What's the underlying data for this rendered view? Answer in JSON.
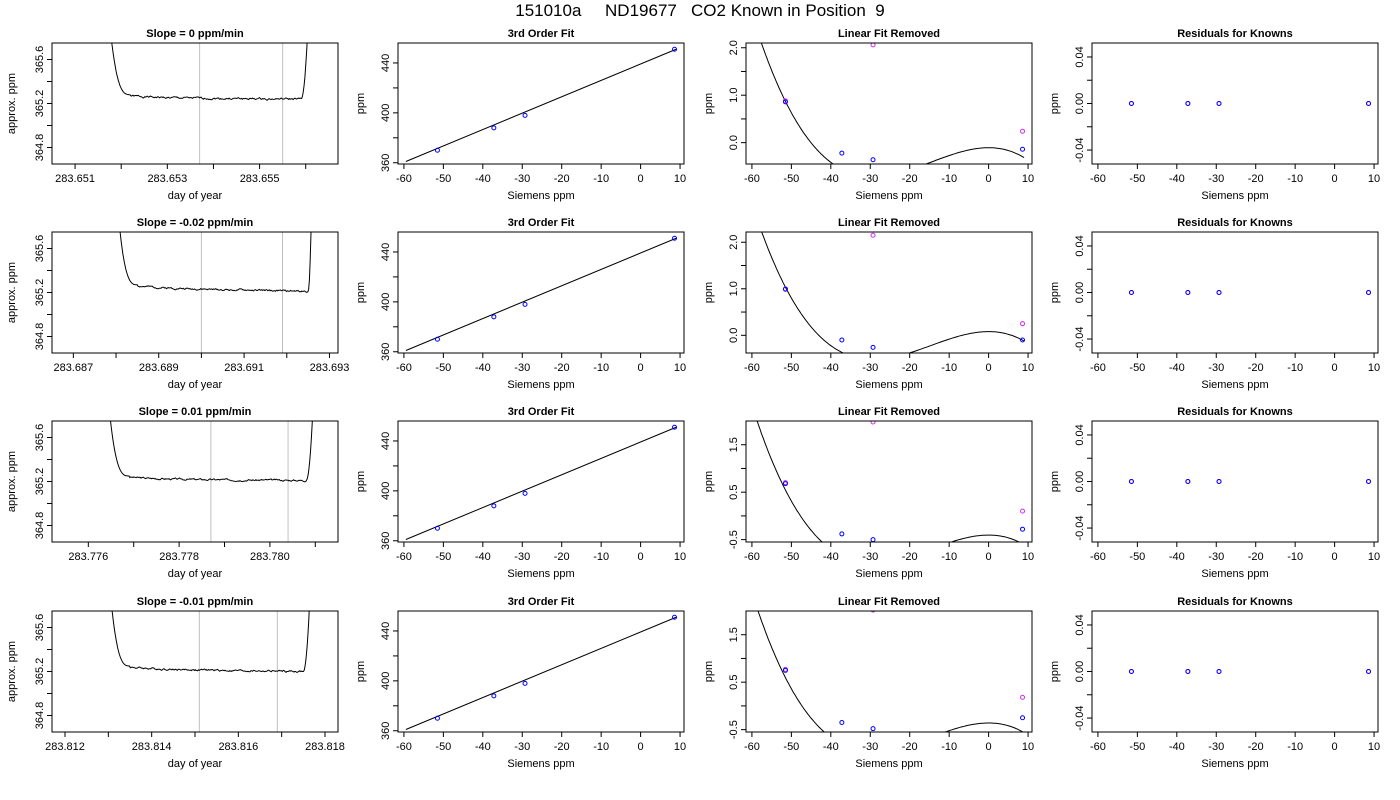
{
  "page_title": "151010a     ND19677   CO2 Known in Position  9",
  "colors": {
    "curve": "#000000",
    "measured": "#0000ff",
    "reference": "#d22cf0",
    "window_lines": "#c0c0c0",
    "background": "#ffffff"
  },
  "chart_data": [
    {
      "type": "line",
      "title": "Slope =  0  ppm/min",
      "xlabel": "day of year",
      "ylabel": "approx. ppm",
      "xlim": [
        283.6505,
        283.6567
      ],
      "ylim": [
        364.65,
        365.75
      ],
      "xticks": [
        283.651,
        283.652,
        283.653,
        283.654,
        283.655,
        283.656
      ],
      "xtick_labels": [
        "283.651",
        "",
        "283.653",
        "",
        "283.655",
        ""
      ],
      "yticks": [
        364.8,
        365.0,
        365.2,
        365.4,
        365.6
      ],
      "ytick_labels": [
        "364.8",
        "",
        "365.2",
        "",
        "365.6"
      ],
      "trace": {
        "start": 283.6517,
        "end": 283.6561,
        "plateau_start": 283.6522,
        "plateau_end": 283.6559,
        "level": 365.25,
        "level_end": 365.24,
        "noise": 0.013,
        "trend_seed": 1
      },
      "window": [
        283.6537,
        283.6555
      ]
    },
    {
      "type": "scatter",
      "title": "3rd Order Fit",
      "xlabel": "Siemens ppm",
      "ylabel": "ppm",
      "xlim": [
        -61.5,
        11
      ],
      "ylim": [
        359,
        456
      ],
      "xticks": [
        -60,
        -50,
        -40,
        -30,
        -20,
        -10,
        0,
        10
      ],
      "xtick_labels": [
        "-60",
        "-50",
        "-40",
        "-30",
        "-20",
        "-10",
        "0",
        "10"
      ],
      "yticks": [
        360,
        380,
        400,
        420,
        440
      ],
      "ytick_labels": [
        "360",
        "",
        "400",
        "",
        "440"
      ],
      "points": [
        {
          "x": -51.5,
          "y": 370
        },
        {
          "x": -37.2,
          "y": 388
        },
        {
          "x": -29.3,
          "y": 398
        },
        {
          "x": 8.6,
          "y": 451
        }
      ],
      "curve": {
        "type": "linear",
        "x0": -59.5,
        "x1": 9,
        "y0": 361,
        "y1": 451
      }
    },
    {
      "type": "scatter",
      "title": "Linear Fit Removed",
      "xlabel": "Siemens ppm",
      "ylabel": "ppm",
      "xlim": [
        -61.5,
        11
      ],
      "ylim": [
        -0.45,
        2.1
      ],
      "xticks": [
        -60,
        -50,
        -40,
        -30,
        -20,
        -10,
        0,
        10
      ],
      "xtick_labels": [
        "-60",
        "-50",
        "-40",
        "-30",
        "-20",
        "-10",
        "0",
        "10"
      ],
      "yticks": [
        0,
        0.5,
        1,
        1.5,
        2
      ],
      "ytick_labels": [
        "0.0",
        "",
        "1.0",
        "",
        "2.0"
      ],
      "points": [
        {
          "x": -51.5,
          "y": 0.86
        },
        {
          "x": -37.2,
          "y": -0.22
        },
        {
          "x": -29.3,
          "y": -0.36
        },
        {
          "x": 8.6,
          "y": -0.14
        }
      ],
      "reference_points": [
        {
          "x": -51.5,
          "y": 0.88
        },
        {
          "x": -29.3,
          "y": 2.06
        },
        {
          "x": 8.6,
          "y": 0.24
        }
      ],
      "curve": {
        "type": "cubic",
        "x0": -60,
        "x1": 9,
        "xr": -29.3,
        "xz": 0,
        "k": 4.876e-05
      }
    },
    {
      "type": "scatter",
      "title": "Residuals for Knowns",
      "xlabel": "Siemens ppm",
      "ylabel": "ppm",
      "xlim": [
        -61.5,
        11
      ],
      "ylim": [
        -0.052,
        0.052
      ],
      "xticks": [
        -60,
        -50,
        -40,
        -30,
        -20,
        -10,
        0,
        10
      ],
      "xtick_labels": [
        "-60",
        "-50",
        "-40",
        "-30",
        "-20",
        "-10",
        "0",
        "10"
      ],
      "yticks": [
        -0.04,
        -0.02,
        0,
        0.02,
        0.04
      ],
      "ytick_labels": [
        "-0.04",
        "",
        "0.00",
        "",
        "0.04"
      ],
      "points": [
        {
          "x": -51.5,
          "y": 0
        },
        {
          "x": -37.2,
          "y": 0
        },
        {
          "x": -29.3,
          "y": 0
        },
        {
          "x": 8.6,
          "y": 0
        }
      ],
      "reference_points": [
        {
          "x": -51.5,
          "y": 0
        },
        {
          "x": -37.2,
          "y": 0
        },
        {
          "x": -29.3,
          "y": 0
        },
        {
          "x": 8.6,
          "y": 0
        }
      ]
    },
    {
      "type": "line",
      "title": "Slope =  -0.02  ppm/min",
      "xlabel": "day of year",
      "ylabel": "approx. ppm",
      "xlim": [
        283.6865,
        283.6932
      ],
      "ylim": [
        364.65,
        365.75
      ],
      "xticks": [
        283.687,
        283.688,
        283.689,
        283.69,
        283.691,
        283.692,
        283.693
      ],
      "xtick_labels": [
        "283.687",
        "",
        "283.689",
        "",
        "283.691",
        "",
        "283.693"
      ],
      "yticks": [
        364.8,
        365.0,
        365.2,
        365.4,
        365.6
      ],
      "ytick_labels": [
        "364.8",
        "",
        "365.2",
        "",
        "365.6"
      ],
      "trace": {
        "start": 283.688,
        "end": 283.6926,
        "plateau_start": 283.6885,
        "plateau_end": 283.6925,
        "level": 365.24,
        "level_end": 365.21,
        "noise": 0.012,
        "trend_seed": 2
      },
      "window": [
        283.69,
        283.6919
      ]
    },
    {
      "type": "scatter",
      "title": "3rd Order Fit",
      "xlabel": "Siemens ppm",
      "ylabel": "ppm",
      "xlim": [
        -61.5,
        11
      ],
      "ylim": [
        359,
        456
      ],
      "xticks": [
        -60,
        -50,
        -40,
        -30,
        -20,
        -10,
        0,
        10
      ],
      "xtick_labels": [
        "-60",
        "-50",
        "-40",
        "-30",
        "-20",
        "-10",
        "0",
        "10"
      ],
      "yticks": [
        360,
        380,
        400,
        420,
        440
      ],
      "ytick_labels": [
        "360",
        "",
        "400",
        "",
        "440"
      ],
      "points": [
        {
          "x": -51.5,
          "y": 370
        },
        {
          "x": -37.2,
          "y": 388
        },
        {
          "x": -29.3,
          "y": 398
        },
        {
          "x": 8.6,
          "y": 451
        }
      ],
      "curve": {
        "type": "linear",
        "x0": -59.5,
        "x1": 9,
        "y0": 361,
        "y1": 451
      }
    },
    {
      "type": "scatter",
      "title": "Linear Fit Removed",
      "xlabel": "Siemens ppm",
      "ylabel": "ppm",
      "xlim": [
        -61.5,
        11
      ],
      "ylim": [
        -0.38,
        2.22
      ],
      "xticks": [
        -60,
        -50,
        -40,
        -30,
        -20,
        -10,
        0,
        10
      ],
      "xtick_labels": [
        "-60",
        "-50",
        "-40",
        "-30",
        "-20",
        "-10",
        "0",
        "10"
      ],
      "yticks": [
        0,
        0.5,
        1,
        1.5,
        2
      ],
      "ytick_labels": [
        "0.0",
        "",
        "1.0",
        "",
        "2.0"
      ],
      "points": [
        {
          "x": -51.5,
          "y": 0.99
        },
        {
          "x": -37.2,
          "y": -0.1
        },
        {
          "x": -29.3,
          "y": -0.26
        },
        {
          "x": 8.6,
          "y": -0.1
        }
      ],
      "reference_points": [
        {
          "x": -51.5,
          "y": 1.0
        },
        {
          "x": -29.3,
          "y": 2.15
        },
        {
          "x": 8.6,
          "y": 0.25
        }
      ],
      "curve": {
        "type": "cubic",
        "x0": -60,
        "x1": 9,
        "xr": -29.3,
        "xz": 0,
        "k": 4.77e-05
      }
    },
    {
      "type": "scatter",
      "title": "Residuals for Knowns",
      "xlabel": "Siemens ppm",
      "ylabel": "ppm",
      "xlim": [
        -61.5,
        11
      ],
      "ylim": [
        -0.052,
        0.052
      ],
      "xticks": [
        -60,
        -50,
        -40,
        -30,
        -20,
        -10,
        0,
        10
      ],
      "xtick_labels": [
        "-60",
        "-50",
        "-40",
        "-30",
        "-20",
        "-10",
        "0",
        "10"
      ],
      "yticks": [
        -0.04,
        -0.02,
        0,
        0.02,
        0.04
      ],
      "ytick_labels": [
        "-0.04",
        "",
        "0.00",
        "",
        "0.04"
      ],
      "points": [
        {
          "x": -51.5,
          "y": 0
        },
        {
          "x": -37.2,
          "y": 0
        },
        {
          "x": -29.3,
          "y": 0
        },
        {
          "x": 8.6,
          "y": 0
        }
      ],
      "reference_points": [
        {
          "x": -51.5,
          "y": 0
        },
        {
          "x": -37.2,
          "y": 0
        },
        {
          "x": -29.3,
          "y": 0
        },
        {
          "x": 8.6,
          "y": 0
        }
      ]
    },
    {
      "type": "line",
      "title": "Slope =  0.01  ppm/min",
      "xlabel": "day of year",
      "ylabel": "approx. ppm",
      "xlim": [
        283.7752,
        283.7815
      ],
      "ylim": [
        364.65,
        365.75
      ],
      "xticks": [
        283.776,
        283.777,
        283.778,
        283.779,
        283.78,
        283.781
      ],
      "xtick_labels": [
        "283.776",
        "",
        "283.778",
        "",
        "283.780",
        ""
      ],
      "yticks": [
        364.8,
        365.0,
        365.2,
        365.4,
        365.6
      ],
      "ytick_labels": [
        "364.8",
        "",
        "365.2",
        "",
        "365.6"
      ],
      "trace": {
        "start": 283.7764,
        "end": 283.781,
        "plateau_start": 283.7769,
        "plateau_end": 283.7808,
        "level": 365.22,
        "level_end": 365.21,
        "noise": 0.012,
        "trend_seed": 3
      },
      "window": [
        283.7787,
        283.7804
      ]
    },
    {
      "type": "scatter",
      "title": "3rd Order Fit",
      "xlabel": "Siemens ppm",
      "ylabel": "ppm",
      "xlim": [
        -61.5,
        11
      ],
      "ylim": [
        359,
        456
      ],
      "xticks": [
        -60,
        -50,
        -40,
        -30,
        -20,
        -10,
        0,
        10
      ],
      "xtick_labels": [
        "-60",
        "-50",
        "-40",
        "-30",
        "-20",
        "-10",
        "0",
        "10"
      ],
      "yticks": [
        360,
        380,
        400,
        420,
        440
      ],
      "ytick_labels": [
        "360",
        "",
        "400",
        "",
        "440"
      ],
      "points": [
        {
          "x": -51.5,
          "y": 370
        },
        {
          "x": -37.2,
          "y": 388
        },
        {
          "x": -29.3,
          "y": 398
        },
        {
          "x": 8.6,
          "y": 451
        }
      ],
      "curve": {
        "type": "linear",
        "x0": -59.5,
        "x1": 9,
        "y0": 361,
        "y1": 451
      }
    },
    {
      "type": "scatter",
      "title": "Linear Fit Removed",
      "xlabel": "Siemens ppm",
      "ylabel": "ppm",
      "xlim": [
        -61.5,
        11
      ],
      "ylim": [
        -0.55,
        2.0
      ],
      "xticks": [
        -60,
        -50,
        -40,
        -30,
        -20,
        -10,
        0,
        10
      ],
      "xtick_labels": [
        "-60",
        "-50",
        "-40",
        "-30",
        "-20",
        "-10",
        "0",
        "10"
      ],
      "yticks": [
        -0.5,
        0,
        0.5,
        1,
        1.5
      ],
      "ytick_labels": [
        "-0.5",
        "",
        "0.5",
        "",
        "1.5"
      ],
      "points": [
        {
          "x": -51.5,
          "y": 0.68
        },
        {
          "x": -37.2,
          "y": -0.38
        },
        {
          "x": -29.3,
          "y": -0.5
        },
        {
          "x": 8.6,
          "y": -0.28
        }
      ],
      "reference_points": [
        {
          "x": -51.5,
          "y": 0.7
        },
        {
          "x": -29.3,
          "y": 1.98
        },
        {
          "x": 8.6,
          "y": 0.1
        }
      ],
      "curve": {
        "type": "cubic",
        "x0": -60,
        "x1": 9,
        "xr": -29.3,
        "xz": 0,
        "k": 4.74e-05
      }
    },
    {
      "type": "scatter",
      "title": "Residuals for Knowns",
      "xlabel": "Siemens ppm",
      "ylabel": "ppm",
      "xlim": [
        -61.5,
        11
      ],
      "ylim": [
        -0.052,
        0.052
      ],
      "xticks": [
        -60,
        -50,
        -40,
        -30,
        -20,
        -10,
        0,
        10
      ],
      "xtick_labels": [
        "-60",
        "-50",
        "-40",
        "-30",
        "-20",
        "-10",
        "0",
        "10"
      ],
      "yticks": [
        -0.04,
        -0.02,
        0,
        0.02,
        0.04
      ],
      "ytick_labels": [
        "-0.04",
        "",
        "0.00",
        "",
        "0.04"
      ],
      "points": [
        {
          "x": -51.5,
          "y": 0
        },
        {
          "x": -37.2,
          "y": 0
        },
        {
          "x": -29.3,
          "y": 0
        },
        {
          "x": 8.6,
          "y": 0
        }
      ],
      "reference_points": [
        {
          "x": -51.5,
          "y": 0
        },
        {
          "x": -37.2,
          "y": 0
        },
        {
          "x": -29.3,
          "y": 0
        },
        {
          "x": 8.6,
          "y": 0
        }
      ]
    },
    {
      "type": "line",
      "title": "Slope =  -0.01  ppm/min",
      "xlabel": "day of year",
      "ylabel": "approx. ppm",
      "xlim": [
        283.8117,
        283.8183
      ],
      "ylim": [
        364.65,
        365.75
      ],
      "xticks": [
        283.812,
        283.813,
        283.814,
        283.815,
        283.816,
        283.817,
        283.818
      ],
      "xtick_labels": [
        "283.812",
        "",
        "283.814",
        "",
        "283.816",
        "",
        "283.818"
      ],
      "yticks": [
        364.8,
        365.0,
        365.2,
        365.4,
        365.6
      ],
      "ytick_labels": [
        "364.8",
        "",
        "365.2",
        "",
        "365.6"
      ],
      "trace": {
        "start": 283.813,
        "end": 283.8177,
        "plateau_start": 283.8135,
        "plateau_end": 283.8175,
        "level": 365.22,
        "level_end": 365.2,
        "noise": 0.013,
        "trend_seed": 4
      },
      "window": [
        283.8151,
        283.8169
      ]
    },
    {
      "type": "scatter",
      "title": "3rd Order Fit",
      "xlabel": "Siemens ppm",
      "ylabel": "ppm",
      "xlim": [
        -61.5,
        11
      ],
      "ylim": [
        359,
        456
      ],
      "xticks": [
        -60,
        -50,
        -40,
        -30,
        -20,
        -10,
        0,
        10
      ],
      "xtick_labels": [
        "-60",
        "-50",
        "-40",
        "-30",
        "-20",
        "-10",
        "0",
        "10"
      ],
      "yticks": [
        360,
        380,
        400,
        420,
        440
      ],
      "ytick_labels": [
        "360",
        "",
        "400",
        "",
        "440"
      ],
      "points": [
        {
          "x": -51.5,
          "y": 370
        },
        {
          "x": -37.2,
          "y": 388
        },
        {
          "x": -29.3,
          "y": 398
        },
        {
          "x": 8.6,
          "y": 451
        }
      ],
      "curve": {
        "type": "linear",
        "x0": -59.5,
        "x1": 9,
        "y0": 361,
        "y1": 451
      }
    },
    {
      "type": "scatter",
      "title": "Linear Fit Removed",
      "xlabel": "Siemens ppm",
      "ylabel": "ppm",
      "xlim": [
        -61.5,
        11
      ],
      "ylim": [
        -0.55,
        2.0
      ],
      "xticks": [
        -60,
        -50,
        -40,
        -30,
        -20,
        -10,
        0,
        10
      ],
      "xtick_labels": [
        "-60",
        "-50",
        "-40",
        "-30",
        "-20",
        "-10",
        "0",
        "10"
      ],
      "yticks": [
        -0.5,
        0,
        0.5,
        1,
        1.5
      ],
      "ytick_labels": [
        "-0.5",
        "",
        "0.5",
        "",
        "1.5"
      ],
      "points": [
        {
          "x": -51.5,
          "y": 0.75
        },
        {
          "x": -37.2,
          "y": -0.35
        },
        {
          "x": -29.3,
          "y": -0.48
        },
        {
          "x": 8.6,
          "y": -0.25
        }
      ],
      "reference_points": [
        {
          "x": -51.5,
          "y": 0.77
        },
        {
          "x": -29.3,
          "y": 2.02
        },
        {
          "x": 8.6,
          "y": 0.18
        }
      ],
      "curve": {
        "type": "cubic",
        "x0": -60,
        "x1": 9,
        "xr": -29.3,
        "xz": 0,
        "k": 4.77e-05
      }
    },
    {
      "type": "scatter",
      "title": "Residuals for Knowns",
      "xlabel": "Siemens ppm",
      "ylabel": "ppm",
      "xlim": [
        -61.5,
        11
      ],
      "ylim": [
        -0.052,
        0.052
      ],
      "xticks": [
        -60,
        -50,
        -40,
        -30,
        -20,
        -10,
        0,
        10
      ],
      "xtick_labels": [
        "-60",
        "-50",
        "-40",
        "-30",
        "-20",
        "-10",
        "0",
        "10"
      ],
      "yticks": [
        -0.04,
        -0.02,
        0,
        0.02,
        0.04
      ],
      "ytick_labels": [
        "-0.04",
        "",
        "0.00",
        "",
        "0.04"
      ],
      "points": [
        {
          "x": -51.5,
          "y": 0
        },
        {
          "x": -37.2,
          "y": 0
        },
        {
          "x": -29.3,
          "y": 0
        },
        {
          "x": 8.6,
          "y": 0
        }
      ],
      "reference_points": [
        {
          "x": -51.5,
          "y": 0
        },
        {
          "x": -37.2,
          "y": 0
        },
        {
          "x": -29.3,
          "y": 0
        },
        {
          "x": 8.6,
          "y": 0
        }
      ]
    }
  ]
}
